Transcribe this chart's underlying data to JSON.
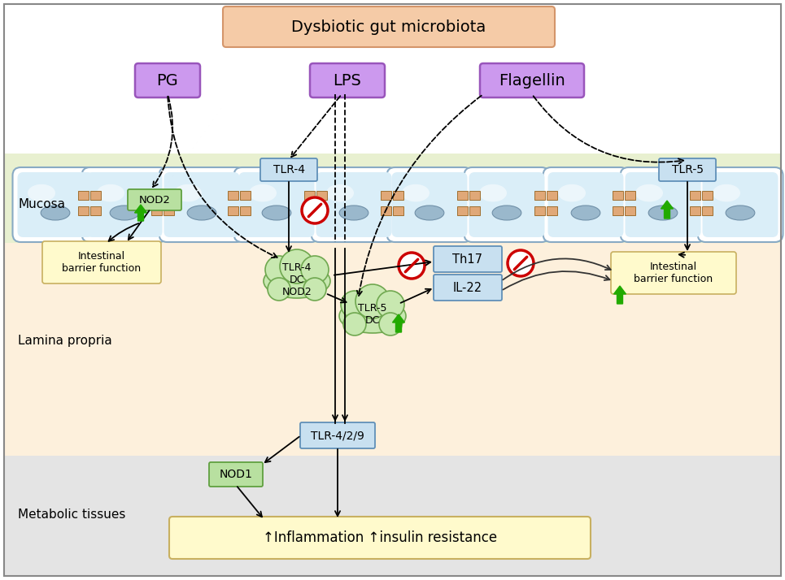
{
  "title": "Dysbiotic gut microbiota",
  "title_bg": "#f5cba7",
  "title_border": "#d4956a",
  "mucosa_label": "Mucosa",
  "lamina_label": "Lamina propria",
  "metabolic_label": "Metabolic tissues",
  "mucosa_bg": "#e8f0d0",
  "lamina_bg": "#fdf0dc",
  "metabolic_bg": "#e4e4e4",
  "signaling_box_bg": "#cc99ee",
  "signaling_box_border": "#9955bb",
  "cell_bg": "#daeef8",
  "cell_border": "#88aac4",
  "cell_highlight": "#f0f8ff",
  "nucleus_color": "#9ab8cc",
  "junction_color": "#e0a878",
  "green_color": "#22aa00",
  "red_color": "#cc0000",
  "box_blue_bg": "#c8e0f0",
  "box_blue_border": "#6090b8",
  "nod_box_bg": "#b8e0a0",
  "nod_box_border": "#60a040",
  "tlr_box_bg": "#c8e0f0",
  "tlr_box_border": "#6090b8",
  "yellow_box_bg": "#fffacc",
  "yellow_box_border": "#c8b060",
  "cloud_bg": "#c8e8b0",
  "cloud_border": "#70a850",
  "inflammation_label": "↑Inflammation ↑insulin resistance",
  "outer_border": "#888888"
}
